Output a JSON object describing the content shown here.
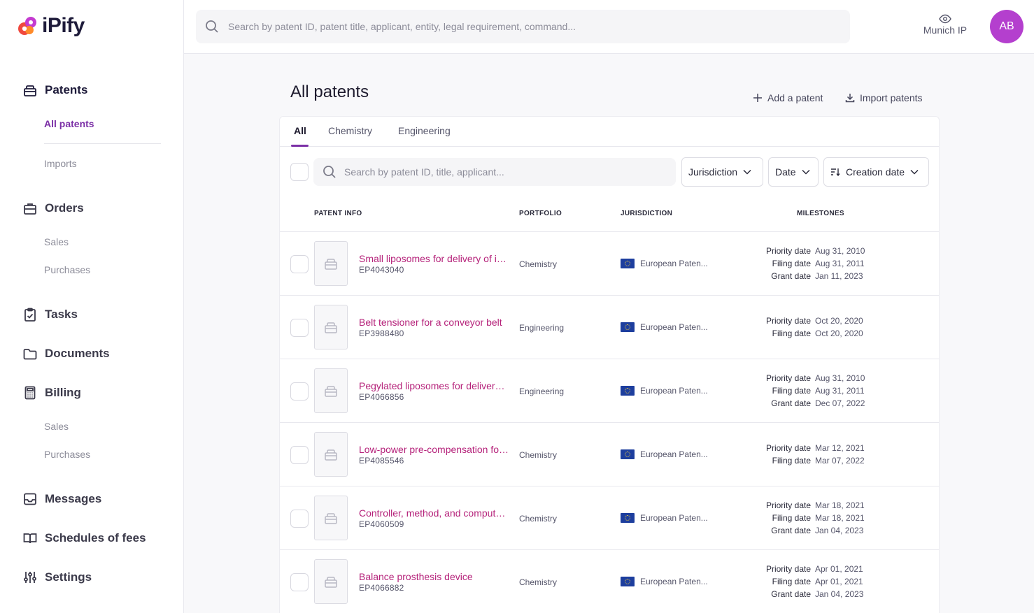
{
  "app": {
    "name": "iPify",
    "brand_color": "#7b2fa6"
  },
  "sidebar": {
    "sections": [
      {
        "label": "Patents",
        "icon": "patent-icon",
        "subs": [
          "All patents",
          "Imports"
        ]
      },
      {
        "label": "Orders",
        "icon": "briefcase-icon",
        "subs": [
          "Sales",
          "Purchases"
        ]
      },
      {
        "label": "Tasks",
        "icon": "clipboard-check-icon",
        "subs": []
      },
      {
        "label": "Documents",
        "icon": "folder-icon",
        "subs": []
      },
      {
        "label": "Billing",
        "icon": "calculator-icon",
        "subs": [
          "Sales",
          "Purchases"
        ]
      },
      {
        "label": "Messages",
        "icon": "inbox-icon",
        "subs": []
      },
      {
        "label": "Schedules of fees",
        "icon": "book-icon",
        "subs": []
      },
      {
        "label": "Settings",
        "icon": "sliders-icon",
        "subs": []
      }
    ]
  },
  "header": {
    "search_placeholder": "Search by patent ID, patent title, applicant, entity, legal requirement, command...",
    "organization": "Munich IP",
    "avatar_initials": "AB"
  },
  "main": {
    "title": "All patents",
    "add_label": "Add a patent",
    "import_label": "Import patents",
    "tabs": [
      "All",
      "Chemistry",
      "Engineering"
    ],
    "search_placeholder": "Search by patent ID, title, applicant...",
    "filters": {
      "jurisdiction": "Jurisdiction",
      "date": "Date",
      "sort": "Creation date"
    },
    "columns": {
      "info": "PATENT INFO",
      "portfolio": "PORTFOLIO",
      "jurisdiction": "JURISDICTION",
      "milestones": "MILESTONES"
    },
    "patents": [
      {
        "title": "Small liposomes for delivery of immunogen-encoding RNA",
        "id": "EP4043040",
        "portfolio": "Chemistry",
        "jurisdiction": "European Paten...",
        "milestones": [
          {
            "label": "Priority date",
            "value": "Aug 31, 2010"
          },
          {
            "label": "Filing date",
            "value": "Aug 31, 2011"
          },
          {
            "label": "Grant date",
            "value": "Jan 11, 2023"
          }
        ]
      },
      {
        "title": "Belt tensioner for a conveyor belt",
        "id": "EP3988480",
        "portfolio": "Engineering",
        "jurisdiction": "European Paten...",
        "milestones": [
          {
            "label": "Priority date",
            "value": "Oct 20, 2020"
          },
          {
            "label": "Filing date",
            "value": "Oct 20, 2020"
          }
        ]
      },
      {
        "title": "Pegylated liposomes for delivery of immunogen-encoding RNA",
        "id": "EP4066856",
        "portfolio": "Engineering",
        "jurisdiction": "European Paten...",
        "milestones": [
          {
            "label": "Priority date",
            "value": "Aug 31, 2010"
          },
          {
            "label": "Filing date",
            "value": "Aug 31, 2011"
          },
          {
            "label": "Grant date",
            "value": "Dec 07, 2022"
          }
        ]
      },
      {
        "title": "Low-power pre-compensation for display",
        "id": "EP4085546",
        "portfolio": "Chemistry",
        "jurisdiction": "European Paten...",
        "milestones": [
          {
            "label": "Priority date",
            "value": "Mar 12, 2021"
          },
          {
            "label": "Filing date",
            "value": "Mar 07, 2022"
          }
        ]
      },
      {
        "title": "Controller, method, and computer program",
        "id": "EP4060509",
        "portfolio": "Chemistry",
        "jurisdiction": "European Paten...",
        "milestones": [
          {
            "label": "Priority date",
            "value": "Mar 18, 2021"
          },
          {
            "label": "Filing date",
            "value": "Mar 18, 2021"
          },
          {
            "label": "Grant date",
            "value": "Jan 04, 2023"
          }
        ]
      },
      {
        "title": "Balance prosthesis device",
        "id": "EP4066882",
        "portfolio": "Chemistry",
        "jurisdiction": "European Paten...",
        "milestones": [
          {
            "label": "Priority date",
            "value": "Apr 01, 2021"
          },
          {
            "label": "Filing date",
            "value": "Apr 01, 2021"
          },
          {
            "label": "Grant date",
            "value": "Jan 04, 2023"
          }
        ]
      }
    ]
  }
}
